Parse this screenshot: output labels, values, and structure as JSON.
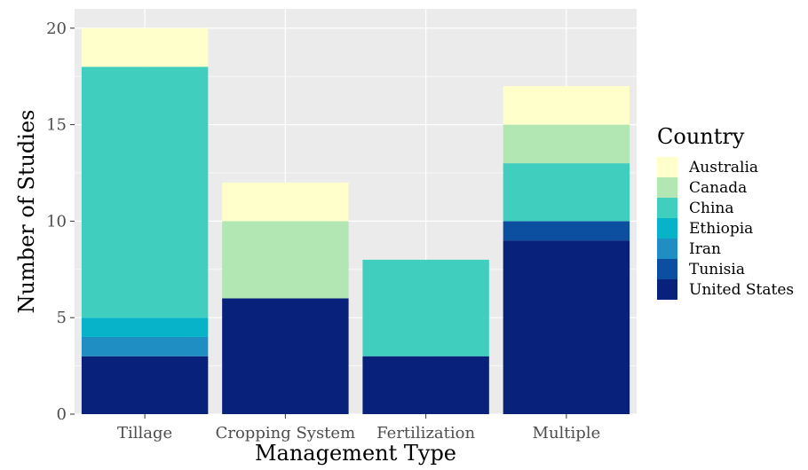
{
  "chart_data": {
    "type": "bar",
    "stacked": true,
    "categories": [
      "Tillage",
      "Cropping System",
      "Fertilization",
      "Multiple"
    ],
    "series": [
      {
        "name": "United States",
        "color": "#08217a",
        "values": [
          3,
          6,
          3,
          9
        ]
      },
      {
        "name": "Tunisia",
        "color": "#0c4ea0",
        "values": [
          0,
          0,
          0,
          1
        ]
      },
      {
        "name": "Iran",
        "color": "#1f8fc3",
        "values": [
          1,
          0,
          0,
          0
        ]
      },
      {
        "name": "Ethiopia",
        "color": "#07b3c8",
        "values": [
          1,
          0,
          0,
          0
        ]
      },
      {
        "name": "China",
        "color": "#40cfbe",
        "values": [
          13,
          0,
          5,
          3
        ]
      },
      {
        "name": "Canada",
        "color": "#b2e6b3",
        "values": [
          0,
          4,
          0,
          2
        ]
      },
      {
        "name": "Australia",
        "color": "#ffffcc",
        "values": [
          2,
          2,
          0,
          2
        ]
      }
    ],
    "legend_order": [
      "Australia",
      "Canada",
      "China",
      "Ethiopia",
      "Iran",
      "Tunisia",
      "United States"
    ],
    "xlabel": "Management Type",
    "ylabel": "Number of Studies",
    "legend_title": "Country",
    "legend_position": "right",
    "ylim": [
      0,
      21
    ],
    "yticks": [
      0,
      5,
      10,
      15,
      20
    ],
    "grid": true,
    "panel_background": "#ebebeb",
    "grid_color": "#ffffff"
  }
}
